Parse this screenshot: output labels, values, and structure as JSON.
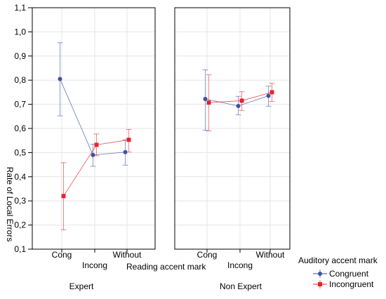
{
  "chart_data": {
    "type": "line",
    "ylabel": "Rate of Local Errors",
    "xlabel": "Reading accent mark",
    "ylim": [
      0.1,
      1.1
    ],
    "yticks": [
      "0,1",
      "0,2",
      "0,3",
      "0,4",
      "0,5",
      "0,6",
      "0,7",
      "0,8",
      "0,9",
      "1,0",
      "1,1"
    ],
    "categories": [
      "Cong",
      "Incong",
      "Without"
    ],
    "grid": true,
    "legend": {
      "title": "Auditory accent mark",
      "placement": "bottom-right",
      "items": [
        "Congruent",
        "Incongruent"
      ]
    },
    "panels": [
      {
        "label": "Expert",
        "series": [
          {
            "name": "Congruent",
            "color": "#3a53a4",
            "marker": "circle",
            "values": [
              0.805,
              0.49,
              0.502
            ],
            "lower": [
              0.652,
              0.443,
              0.448
            ],
            "upper": [
              0.955,
              0.535,
              0.553
            ]
          },
          {
            "name": "Incongruent",
            "color": "#e8232a",
            "marker": "square",
            "values": [
              0.32,
              0.532,
              0.553
            ],
            "lower": [
              0.18,
              0.487,
              0.503
            ],
            "upper": [
              0.458,
              0.577,
              0.596
            ]
          }
        ]
      },
      {
        "label": "Non Expert",
        "series": [
          {
            "name": "Congruent",
            "color": "#3a53a4",
            "marker": "circle",
            "values": [
              0.722,
              0.693,
              0.735
            ],
            "lower": [
              0.592,
              0.656,
              0.692
            ],
            "upper": [
              0.843,
              0.733,
              0.775
            ]
          },
          {
            "name": "Incongruent",
            "color": "#e8232a",
            "marker": "square",
            "values": [
              0.707,
              0.715,
              0.75
            ],
            "lower": [
              0.59,
              0.675,
              0.712
            ],
            "upper": [
              0.822,
              0.752,
              0.787
            ]
          }
        ]
      }
    ]
  }
}
